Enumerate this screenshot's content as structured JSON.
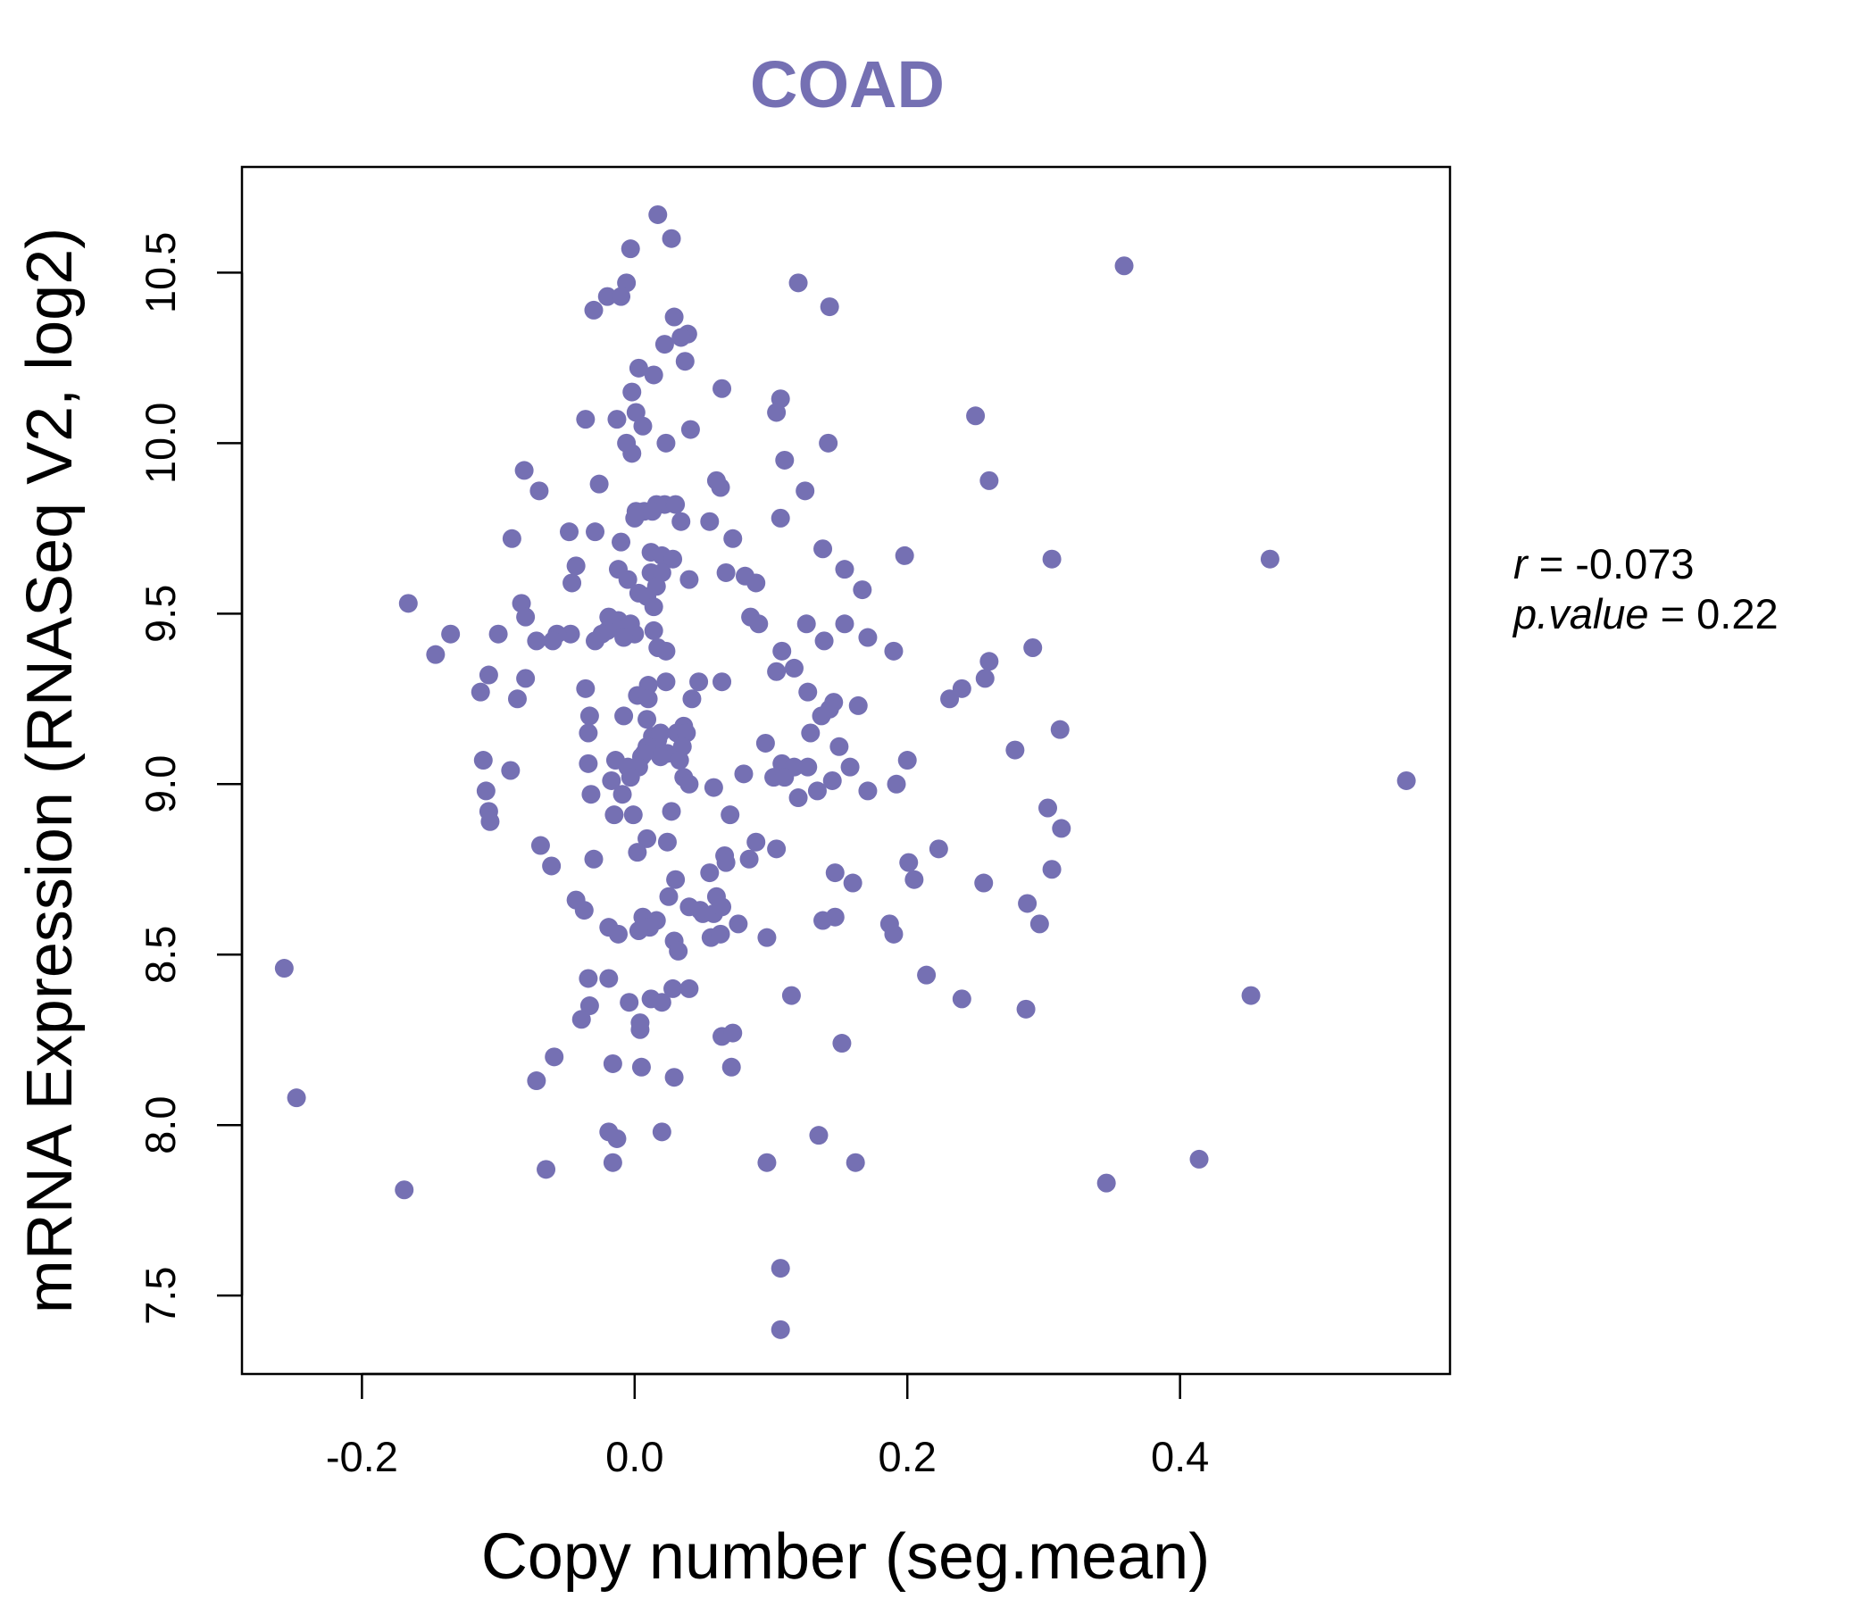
{
  "chart_data": {
    "type": "scatter",
    "title": "COAD",
    "xlabel": "Copy number (seg.mean)",
    "ylabel": "mRNA Expression (RNASeq V2, log2)",
    "xlim": [
      -0.288,
      0.598
    ],
    "ylim": [
      7.27,
      10.81
    ],
    "x_ticks": [
      -0.2,
      0.0,
      0.2,
      0.4
    ],
    "x_tick_labels": [
      "-0.2",
      "0.0",
      "0.2",
      "0.4"
    ],
    "y_ticks": [
      7.5,
      8.0,
      8.5,
      9.0,
      9.5,
      10.0,
      10.5
    ],
    "y_tick_labels": [
      "7.5",
      "8.0",
      "8.5",
      "9.0",
      "9.5",
      "10.0",
      "10.5"
    ],
    "grid": false,
    "colors": {
      "point": "#7570b3",
      "title": "#7570b3",
      "axes": "#000000"
    },
    "annotation": {
      "r_label": "r",
      "r_value": "-0.073",
      "p_label": "p.value",
      "p_value": "0.22",
      "placement": "right of plot"
    },
    "points": [
      [
        0.017,
        10.67
      ],
      [
        0.027,
        10.6
      ],
      [
        -0.003,
        10.57
      ],
      [
        0.359,
        10.52
      ],
      [
        -0.006,
        10.47
      ],
      [
        0.12,
        10.47
      ],
      [
        -0.02,
        10.43
      ],
      [
        -0.01,
        10.43
      ],
      [
        -0.03,
        10.39
      ],
      [
        0.143,
        10.4
      ],
      [
        0.029,
        10.37
      ],
      [
        0.039,
        10.32
      ],
      [
        0.034,
        10.31
      ],
      [
        0.022,
        10.29
      ],
      [
        0.037,
        10.24
      ],
      [
        0.003,
        10.22
      ],
      [
        0.014,
        10.2
      ],
      [
        0.064,
        10.16
      ],
      [
        -0.002,
        10.15
      ],
      [
        0.107,
        10.13
      ],
      [
        0.104,
        10.09
      ],
      [
        0.25,
        10.08
      ],
      [
        0.001,
        10.09
      ],
      [
        -0.036,
        10.07
      ],
      [
        -0.013,
        10.07
      ],
      [
        0.006,
        10.05
      ],
      [
        0.041,
        10.04
      ],
      [
        -0.006,
        10.0
      ],
      [
        -0.002,
        9.97
      ],
      [
        0.023,
        10.0
      ],
      [
        0.142,
        10.0
      ],
      [
        0.11,
        9.95
      ],
      [
        -0.081,
        9.92
      ],
      [
        0.06,
        9.89
      ],
      [
        0.26,
        9.89
      ],
      [
        0.063,
        9.87
      ],
      [
        -0.026,
        9.88
      ],
      [
        0.125,
        9.86
      ],
      [
        -0.07,
        9.86
      ],
      [
        0.022,
        9.82
      ],
      [
        0.03,
        9.82
      ],
      [
        0.016,
        9.82
      ],
      [
        0.007,
        9.8
      ],
      [
        0.001,
        9.8
      ],
      [
        0.013,
        9.8
      ],
      [
        0.0,
        9.78
      ],
      [
        0.034,
        9.77
      ],
      [
        0.055,
        9.77
      ],
      [
        0.107,
        9.78
      ],
      [
        -0.048,
        9.74
      ],
      [
        -0.029,
        9.74
      ],
      [
        -0.09,
        9.72
      ],
      [
        0.072,
        9.72
      ],
      [
        -0.01,
        9.71
      ],
      [
        0.138,
        9.69
      ],
      [
        0.012,
        9.68
      ],
      [
        0.02,
        9.67
      ],
      [
        0.028,
        9.66
      ],
      [
        0.198,
        9.67
      ],
      [
        0.306,
        9.66
      ],
      [
        0.466,
        9.66
      ],
      [
        -0.043,
        9.64
      ],
      [
        -0.012,
        9.63
      ],
      [
        0.154,
        9.63
      ],
      [
        0.012,
        9.62
      ],
      [
        0.02,
        9.62
      ],
      [
        0.067,
        9.62
      ],
      [
        0.081,
        9.61
      ],
      [
        -0.005,
        9.6
      ],
      [
        0.04,
        9.6
      ],
      [
        0.089,
        9.59
      ],
      [
        -0.046,
        9.59
      ],
      [
        0.016,
        9.58
      ],
      [
        0.167,
        9.57
      ],
      [
        0.003,
        9.56
      ],
      [
        0.009,
        9.55
      ],
      [
        -0.166,
        9.53
      ],
      [
        -0.083,
        9.53
      ],
      [
        0.014,
        9.52
      ],
      [
        0.085,
        9.49
      ],
      [
        -0.08,
        9.49
      ],
      [
        -0.019,
        9.49
      ],
      [
        -0.012,
        9.48
      ],
      [
        -0.003,
        9.47
      ],
      [
        0.126,
        9.47
      ],
      [
        0.154,
        9.47
      ],
      [
        0.091,
        9.47
      ],
      [
        -0.014,
        9.46
      ],
      [
        -0.02,
        9.45
      ],
      [
        -0.024,
        9.44
      ],
      [
        -0.047,
        9.44
      ],
      [
        -0.057,
        9.44
      ],
      [
        -0.135,
        9.44
      ],
      [
        -0.1,
        9.44
      ],
      [
        0.014,
        9.45
      ],
      [
        0.0,
        9.44
      ],
      [
        -0.008,
        9.43
      ],
      [
        -0.029,
        9.42
      ],
      [
        -0.06,
        9.42
      ],
      [
        0.139,
        9.42
      ],
      [
        0.171,
        9.43
      ],
      [
        -0.072,
        9.42
      ],
      [
        0.017,
        9.4
      ],
      [
        0.023,
        9.39
      ],
      [
        0.108,
        9.39
      ],
      [
        0.19,
        9.39
      ],
      [
        0.292,
        9.4
      ],
      [
        -0.146,
        9.38
      ],
      [
        0.26,
        9.36
      ],
      [
        0.117,
        9.34
      ],
      [
        0.104,
        9.33
      ],
      [
        0.257,
        9.31
      ],
      [
        0.023,
        9.3
      ],
      [
        0.047,
        9.3
      ],
      [
        0.064,
        9.3
      ],
      [
        -0.107,
        9.32
      ],
      [
        -0.08,
        9.31
      ],
      [
        0.01,
        9.29
      ],
      [
        -0.113,
        9.27
      ],
      [
        -0.036,
        9.28
      ],
      [
        0.24,
        9.28
      ],
      [
        0.127,
        9.27
      ],
      [
        0.002,
        9.26
      ],
      [
        0.01,
        9.25
      ],
      [
        0.042,
        9.25
      ],
      [
        0.231,
        9.25
      ],
      [
        -0.086,
        9.25
      ],
      [
        0.146,
        9.24
      ],
      [
        0.164,
        9.23
      ],
      [
        0.143,
        9.22
      ],
      [
        0.137,
        9.2
      ],
      [
        -0.033,
        9.2
      ],
      [
        -0.008,
        9.2
      ],
      [
        0.009,
        9.19
      ],
      [
        0.036,
        9.17
      ],
      [
        -0.034,
        9.15
      ],
      [
        0.013,
        9.14
      ],
      [
        0.017,
        9.13
      ],
      [
        0.019,
        9.15
      ],
      [
        0.031,
        9.15
      ],
      [
        0.038,
        9.15
      ],
      [
        0.312,
        9.16
      ],
      [
        0.096,
        9.12
      ],
      [
        0.129,
        9.15
      ],
      [
        0.15,
        9.11
      ],
      [
        0.009,
        9.11
      ],
      [
        0.024,
        9.09
      ],
      [
        0.035,
        9.11
      ],
      [
        0.005,
        9.08
      ],
      [
        0.019,
        9.08
      ],
      [
        0.033,
        9.07
      ],
      [
        0.279,
        9.1
      ],
      [
        -0.111,
        9.07
      ],
      [
        -0.014,
        9.07
      ],
      [
        0.007,
        9.09
      ],
      [
        0.2,
        9.07
      ],
      [
        -0.034,
        9.06
      ],
      [
        0.108,
        9.06
      ],
      [
        0.117,
        9.05
      ],
      [
        0.127,
        9.05
      ],
      [
        0.158,
        9.05
      ],
      [
        -0.091,
        9.04
      ],
      [
        -0.005,
        9.05
      ],
      [
        0.003,
        9.05
      ],
      [
        0.102,
        9.02
      ],
      [
        0.08,
        9.03
      ],
      [
        0.036,
        9.02
      ],
      [
        -0.003,
        9.02
      ],
      [
        -0.017,
        9.01
      ],
      [
        0.11,
        9.02
      ],
      [
        0.145,
        9.01
      ],
      [
        0.566,
        9.01
      ],
      [
        0.04,
        9.0
      ],
      [
        0.192,
        9.0
      ],
      [
        -0.109,
        8.98
      ],
      [
        -0.032,
        8.97
      ],
      [
        0.058,
        8.99
      ],
      [
        0.134,
        8.98
      ],
      [
        0.12,
        8.96
      ],
      [
        0.171,
        8.98
      ],
      [
        -0.009,
        8.97
      ],
      [
        0.303,
        8.93
      ],
      [
        0.027,
        8.92
      ],
      [
        -0.107,
        8.92
      ],
      [
        -0.015,
        8.91
      ],
      [
        -0.001,
        8.91
      ],
      [
        0.07,
        8.91
      ],
      [
        -0.106,
        8.89
      ],
      [
        0.313,
        8.87
      ],
      [
        0.009,
        8.84
      ],
      [
        0.024,
        8.83
      ],
      [
        0.089,
        8.83
      ],
      [
        0.223,
        8.81
      ],
      [
        -0.069,
        8.82
      ],
      [
        0.104,
        8.81
      ],
      [
        0.002,
        8.8
      ],
      [
        0.066,
        8.79
      ],
      [
        0.084,
        8.78
      ],
      [
        0.067,
        8.77
      ],
      [
        -0.03,
        8.78
      ],
      [
        0.201,
        8.77
      ],
      [
        -0.061,
        8.76
      ],
      [
        0.147,
        8.74
      ],
      [
        0.306,
        8.75
      ],
      [
        0.055,
        8.74
      ],
      [
        0.03,
        8.72
      ],
      [
        0.205,
        8.72
      ],
      [
        0.16,
        8.71
      ],
      [
        0.256,
        8.71
      ],
      [
        0.025,
        8.67
      ],
      [
        0.06,
        8.67
      ],
      [
        0.288,
        8.65
      ],
      [
        -0.043,
        8.66
      ],
      [
        -0.037,
        8.63
      ],
      [
        0.04,
        8.64
      ],
      [
        0.048,
        8.63
      ],
      [
        0.05,
        8.62
      ],
      [
        0.058,
        8.62
      ],
      [
        0.064,
        8.64
      ],
      [
        0.006,
        8.61
      ],
      [
        0.016,
        8.6
      ],
      [
        0.147,
        8.61
      ],
      [
        0.138,
        8.6
      ],
      [
        0.297,
        8.59
      ],
      [
        0.006,
        8.58
      ],
      [
        0.011,
        8.58
      ],
      [
        -0.019,
        8.58
      ],
      [
        0.076,
        8.59
      ],
      [
        0.187,
        8.59
      ],
      [
        -0.012,
        8.56
      ],
      [
        0.003,
        8.57
      ],
      [
        0.097,
        8.55
      ],
      [
        0.056,
        8.55
      ],
      [
        0.063,
        8.56
      ],
      [
        0.19,
        8.56
      ],
      [
        0.029,
        8.54
      ],
      [
        0.032,
        8.51
      ],
      [
        -0.257,
        8.46
      ],
      [
        0.214,
        8.44
      ],
      [
        -0.034,
        8.43
      ],
      [
        -0.019,
        8.43
      ],
      [
        0.028,
        8.4
      ],
      [
        0.04,
        8.4
      ],
      [
        0.452,
        8.38
      ],
      [
        0.115,
        8.38
      ],
      [
        0.012,
        8.37
      ],
      [
        0.24,
        8.37
      ],
      [
        -0.033,
        8.35
      ],
      [
        -0.004,
        8.36
      ],
      [
        0.02,
        8.36
      ],
      [
        0.287,
        8.34
      ],
      [
        -0.039,
        8.31
      ],
      [
        0.004,
        8.3
      ],
      [
        0.004,
        8.28
      ],
      [
        0.064,
        8.26
      ],
      [
        0.072,
        8.27
      ],
      [
        0.152,
        8.24
      ],
      [
        -0.059,
        8.2
      ],
      [
        -0.016,
        8.18
      ],
      [
        0.005,
        8.17
      ],
      [
        0.071,
        8.17
      ],
      [
        -0.072,
        8.13
      ],
      [
        0.029,
        8.14
      ],
      [
        -0.248,
        8.08
      ],
      [
        0.02,
        7.98
      ],
      [
        -0.019,
        7.98
      ],
      [
        -0.013,
        7.96
      ],
      [
        0.135,
        7.97
      ],
      [
        0.414,
        7.9
      ],
      [
        0.097,
        7.89
      ],
      [
        -0.016,
        7.89
      ],
      [
        0.162,
        7.89
      ],
      [
        -0.065,
        7.87
      ],
      [
        0.346,
        7.83
      ],
      [
        -0.169,
        7.81
      ],
      [
        0.107,
        7.58
      ],
      [
        0.107,
        7.4
      ]
    ]
  }
}
